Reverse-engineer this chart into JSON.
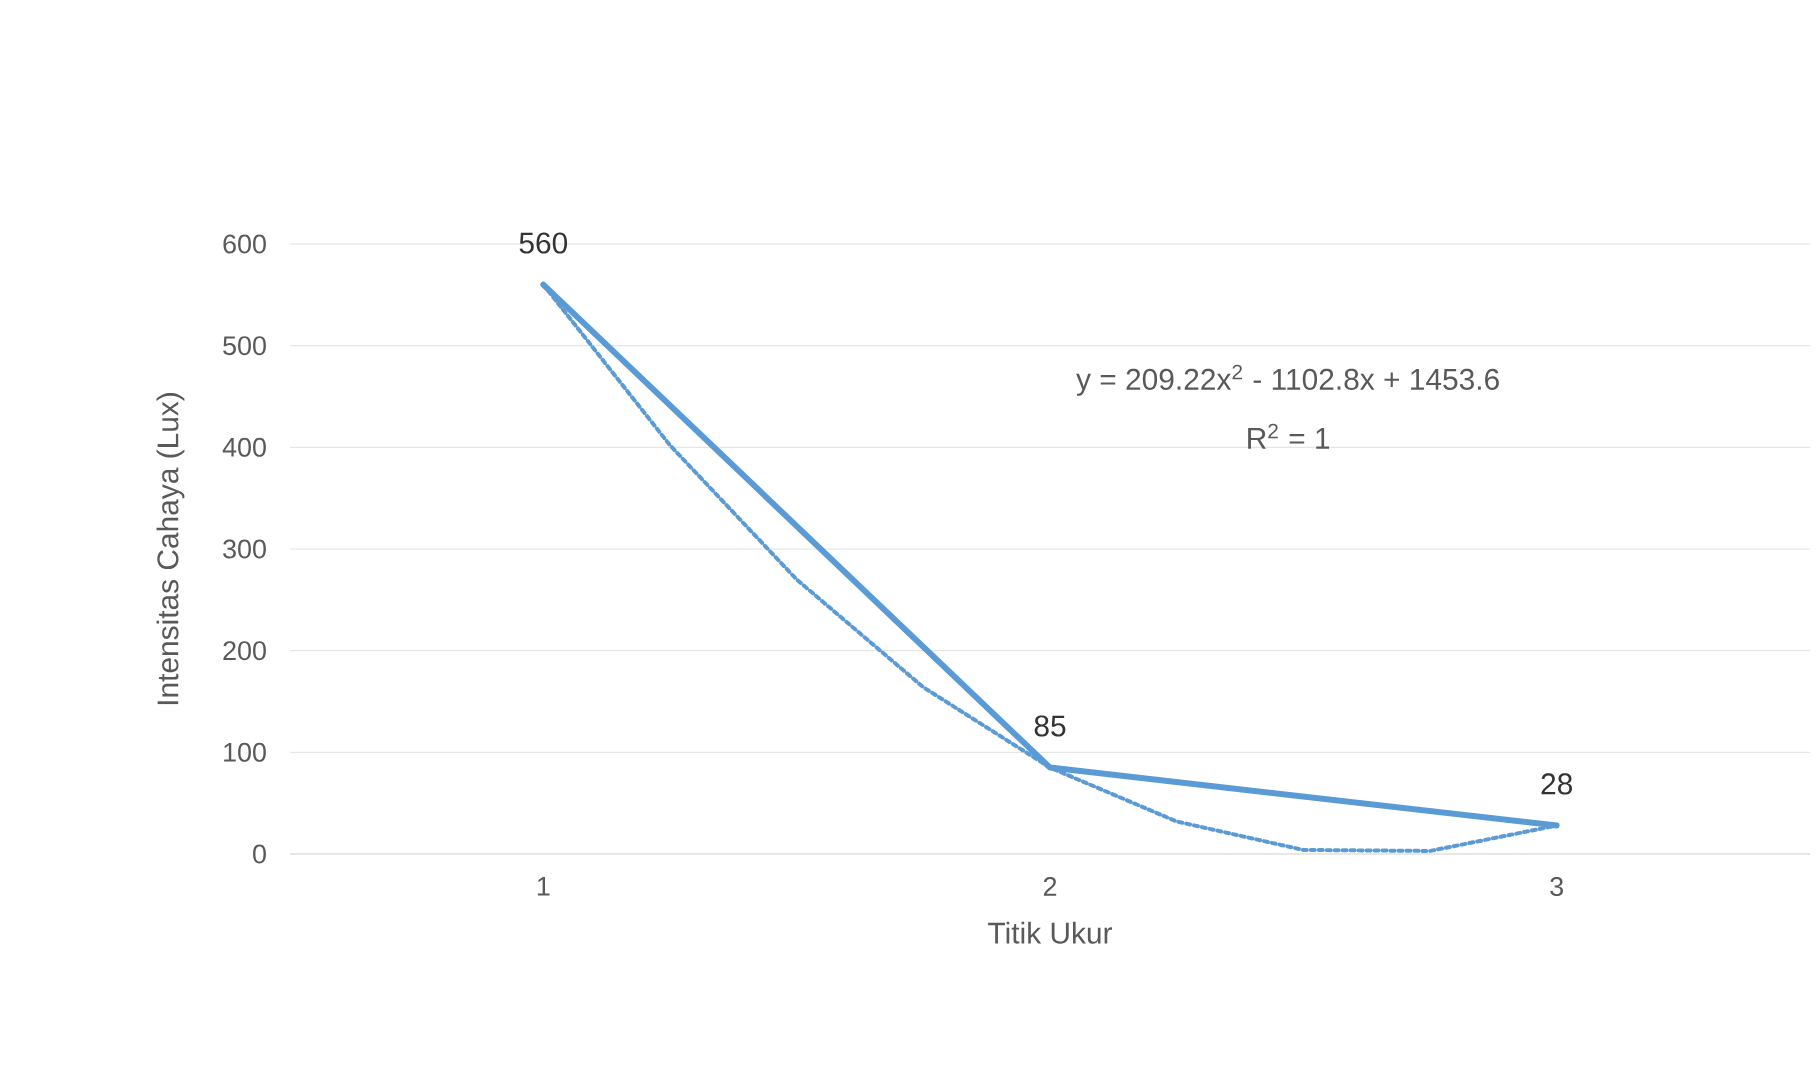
{
  "chart_data": {
    "type": "line",
    "xlabel": "Titik Ukur",
    "ylabel": "Intensitas Cahaya (Lux)",
    "xlim": [
      0.5,
      3.5
    ],
    "xticks": [
      1,
      2,
      3
    ],
    "ylim": [
      0,
      600
    ],
    "yticks": [
      0,
      100,
      200,
      300,
      400,
      500,
      600
    ],
    "grid": "y",
    "marker": "none",
    "series": [
      {
        "color": "#5b9bd5",
        "line_style": "solid",
        "data_labels": true,
        "x": [
          1,
          2,
          3
        ],
        "values": [
          560,
          85,
          28
        ]
      },
      {
        "color": "#5b9bd5",
        "line_style": "dotted",
        "x": [
          1,
          1.25,
          1.5,
          1.75,
          2,
          2.25,
          2.5,
          2.75,
          3
        ],
        "values": [
          560,
          402,
          270,
          164,
          85,
          32,
          4,
          3,
          28
        ]
      }
    ],
    "annotations": [
      "y = 209.22x$^{2}$ - 1102.8x + 1453.6",
      "R$^{2}$ = 1"
    ]
  }
}
